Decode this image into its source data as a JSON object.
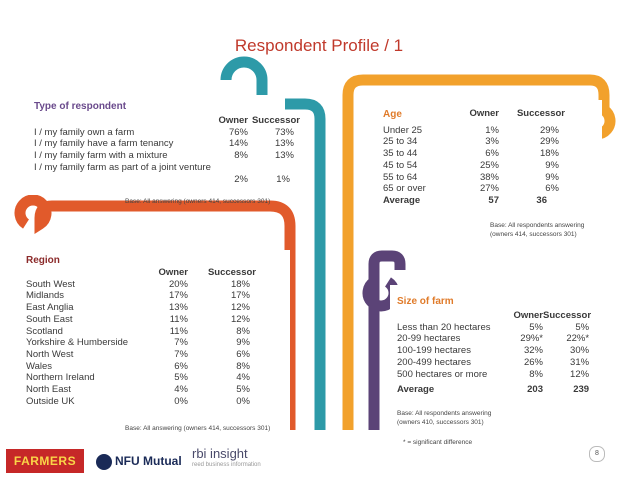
{
  "title": "Respondent Profile / 1",
  "respondent": {
    "title": "Type of respondent",
    "headers": [
      "Owner",
      "Successor"
    ],
    "rows": [
      {
        "label": "I / my family own a farm",
        "owner": "76%",
        "successor": "73%"
      },
      {
        "label": "I / my family have a farm tenancy",
        "owner": "14%",
        "successor": "13%"
      },
      {
        "label": "I / my family farm with a mixture",
        "owner": "8%",
        "successor": "13%"
      }
    ],
    "row4_label": "I / my family farm as part of a joint venture",
    "row4_owner": "2%",
    "row4_successor": "1%",
    "base": "Base: All answering (owners 414, successors 301)"
  },
  "age": {
    "title": "Age",
    "headers": [
      "Owner",
      "Successor"
    ],
    "rows": [
      {
        "label": "Under 25",
        "owner": "1%",
        "successor": "29%"
      },
      {
        "label": "25 to 34",
        "owner": "3%",
        "successor": "29%"
      },
      {
        "label": "35 to 44",
        "owner": "6%",
        "successor": "18%"
      },
      {
        "label": "45 to 54",
        "owner": "25%",
        "successor": "9%"
      },
      {
        "label": "55 to 64",
        "owner": "38%",
        "successor": "9%"
      },
      {
        "label": "65 or over",
        "owner": "27%",
        "successor": "6%"
      }
    ],
    "average": {
      "label": "Average",
      "owner": "57",
      "successor": "36"
    },
    "base1": "Base: All respondents answering",
    "base2": "(owners 414, successors 301)"
  },
  "region": {
    "title": "Region",
    "headers": [
      "Owner",
      "Successor"
    ],
    "rows": [
      {
        "label": "South West",
        "owner": "20%",
        "successor": "18%"
      },
      {
        "label": "Midlands",
        "owner": "17%",
        "successor": "17%"
      },
      {
        "label": "East Anglia",
        "owner": "13%",
        "successor": "12%"
      },
      {
        "label": "South East",
        "owner": "11%",
        "successor": "12%"
      },
      {
        "label": "Scotland",
        "owner": "11%",
        "successor": "8%"
      },
      {
        "label": "Yorkshire & Humberside",
        "owner": "7%",
        "successor": "9%"
      },
      {
        "label": "North West",
        "owner": "7%",
        "successor": "6%"
      },
      {
        "label": "Wales",
        "owner": "6%",
        "successor": "8%"
      },
      {
        "label": "Northern Ireland",
        "owner": "5%",
        "successor": "4%"
      },
      {
        "label": "North East",
        "owner": "4%",
        "successor": "5%"
      },
      {
        "label": "Outside UK",
        "owner": "0%",
        "successor": "0%"
      }
    ],
    "base": "Base: All answering (owners 414, successors 301)"
  },
  "size": {
    "title": "Size of farm",
    "headers": [
      "Owner",
      "Successor"
    ],
    "rows": [
      {
        "label": "Less than 20 hectares",
        "owner": "5%",
        "successor": "5%"
      },
      {
        "label": "20-99 hectares",
        "owner": "29%*",
        "successor": "22%*"
      },
      {
        "label": "100-199 hectares",
        "owner": "32%",
        "successor": "30%"
      },
      {
        "label": "200-499 hectares",
        "owner": "26%",
        "successor": "31%"
      },
      {
        "label": "500 hectares or more",
        "owner": "8%",
        "successor": "12%"
      }
    ],
    "average": {
      "label": "Average",
      "owner": "203",
      "successor": "239"
    },
    "base1": "Base: All respondents answering",
    "base2": "(owners 410, successors 301)",
    "footnote": "* = significant difference"
  },
  "page_number": "8",
  "logos": {
    "farmers": "FARMERS",
    "nfu": "NFU Mutual",
    "rbi": "rbi insight",
    "rbi_sub": "reed business information"
  },
  "colors": {
    "teal": "#2d9aa8",
    "orange": "#f2a12c",
    "red_orange": "#e15a2b",
    "purple": "#5b4377",
    "title_red": "#c0392b"
  }
}
